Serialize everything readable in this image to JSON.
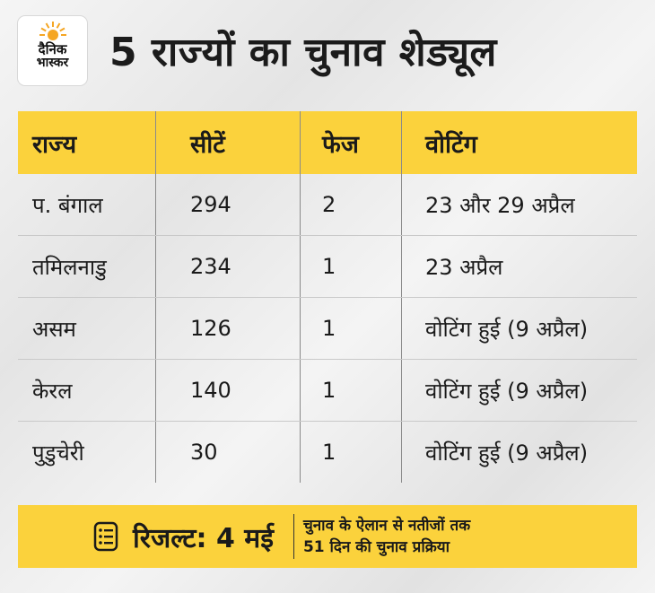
{
  "logo": {
    "line1": "दैनिक",
    "line2": "भास्कर"
  },
  "title": "5 राज्यों का चुनाव शेड्यूल",
  "table": {
    "headers": [
      "राज्य",
      "सीटें",
      "फेज",
      "वोटिंग"
    ],
    "rows": [
      [
        "प. बंगाल",
        "294",
        "2",
        "23 और 29 अप्रैल"
      ],
      [
        "तमिलनाडु",
        "234",
        "1",
        "23 अप्रैल"
      ],
      [
        "असम",
        "126",
        "1",
        "वोटिंग हुई (9 अप्रैल)"
      ],
      [
        "केरल",
        "140",
        "1",
        "वोटिंग हुई (9 अप्रैल)"
      ],
      [
        "पुडुचेरी",
        "30",
        "1",
        "वोटिंग हुई (9 अप्रैल)"
      ]
    ]
  },
  "footer": {
    "icon": "list-icon",
    "result": "रिजल्ट: 4 मई",
    "note_line1": "चुनाव के ऐलान से नतीजों तक",
    "note_line2": "51 दिन की चुनाव प्रक्रिया"
  },
  "colors": {
    "accent": "#fbd23c",
    "background": "#ececec",
    "logo_sun": "#f5a623"
  }
}
